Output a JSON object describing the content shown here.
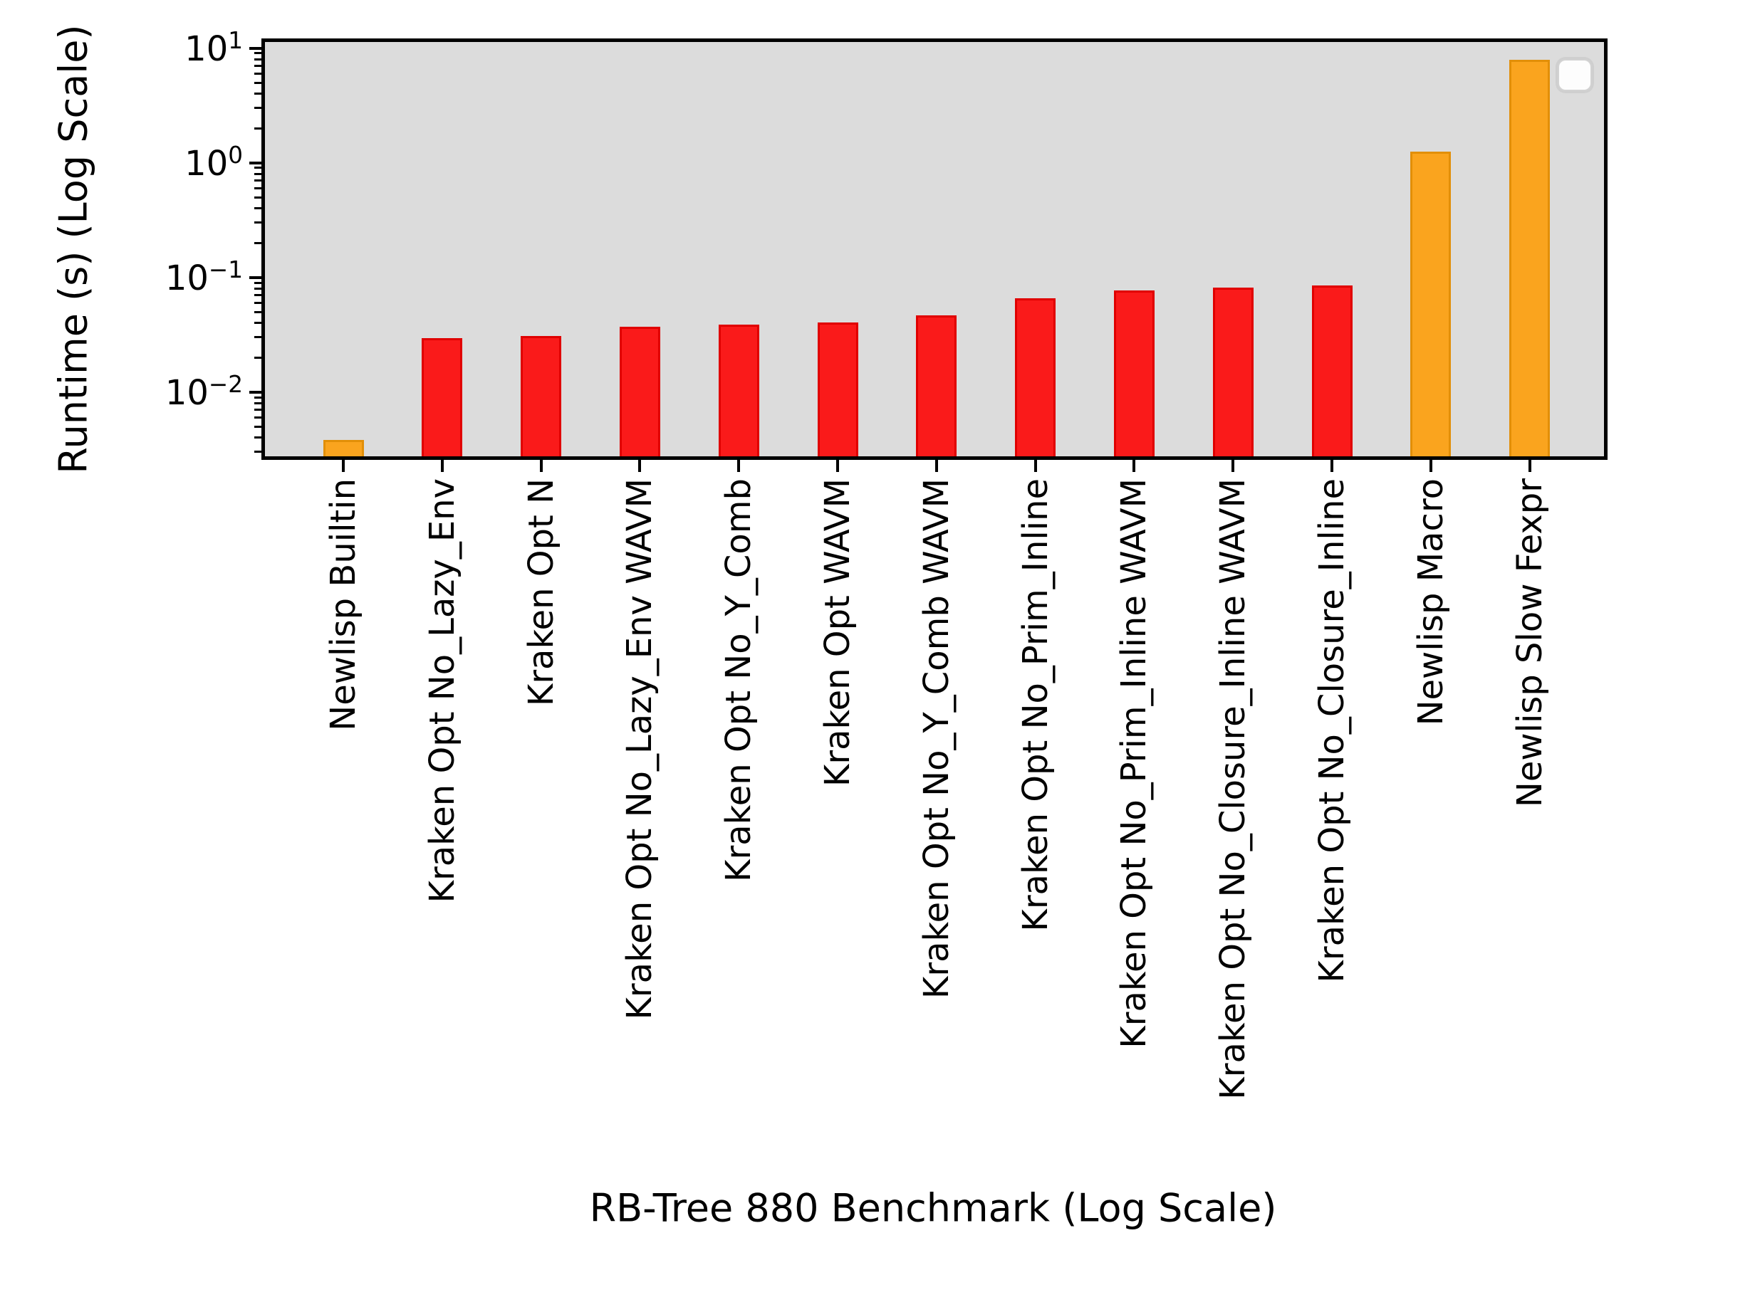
{
  "figure": {
    "ylabel": "Runtime (s) (Log Scale)",
    "xlabel": "RB-Tree 880 Benchmark (Log Scale)"
  },
  "chart_data": {
    "type": "bar",
    "title": "",
    "xlabel": "RB-Tree 880 Benchmark (Log Scale)",
    "ylabel": "Runtime (s) (Log Scale)",
    "yscale": "log",
    "ylim": [
      0.00275,
      11.3
    ],
    "grid": false,
    "plot_bg": "#dcdcdc",
    "categories": [
      "Newlisp Builtin",
      "Kraken Opt No_Lazy_Env",
      "Kraken Opt N",
      "Kraken Opt No_Lazy_Env WAVM",
      "Kraken Opt No_Y_Comb",
      "Kraken Opt WAVM",
      "Kraken Opt No_Y_Comb WAVM",
      "Kraken Opt No_Prim_Inline",
      "Kraken Opt No_Prim_Inline WAVM",
      "Kraken Opt No_Closure_Inline WAVM",
      "Kraken Opt No_Closure_Inline",
      "Newlisp Macro",
      "Newlisp Slow Fexpr"
    ],
    "values": [
      0.0038,
      0.0296,
      0.0308,
      0.037,
      0.0389,
      0.0403,
      0.0464,
      0.066,
      0.0765,
      0.081,
      0.0855,
      1.25,
      7.9
    ],
    "bar_color_keys": [
      "orange",
      "red",
      "red",
      "red",
      "red",
      "red",
      "red",
      "red",
      "red",
      "red",
      "red",
      "orange",
      "orange"
    ],
    "colors": {
      "red": "#fa1a1a",
      "red_edge": "#e00000",
      "orange": "#faa41e",
      "orange_edge": "#e28f08"
    },
    "y_ticks_exponents": [
      1,
      0,
      -1,
      -2
    ],
    "legend": {
      "visible": true,
      "entries": []
    }
  }
}
